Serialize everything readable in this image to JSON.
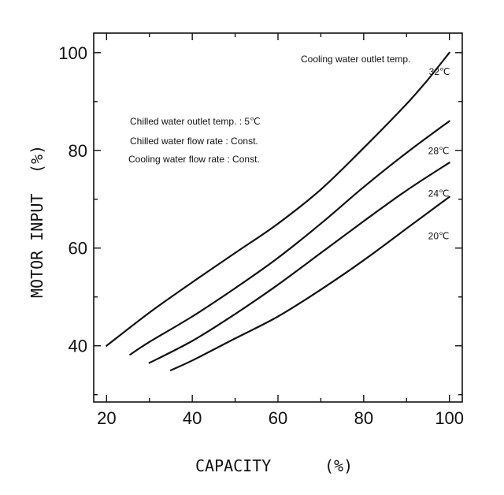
{
  "chart_data": {
    "type": "line",
    "title": "",
    "xlabel": "CAPACITY",
    "xunit": "(%)",
    "ylabel": "MOTOR INPUT",
    "yunit": "(%)",
    "xlim": [
      17,
      103
    ],
    "ylim": [
      28.5,
      104
    ],
    "xticks": [
      20,
      40,
      60,
      80,
      100
    ],
    "yticks": [
      40,
      60,
      80,
      100
    ],
    "minor_ticks": true,
    "grid": false,
    "notes": [
      "Chilled water outlet temp. : 5℃",
      "Chilled water flow rate : Const.",
      "Cooling water flow rate : Const."
    ],
    "legend_title": "Cooling water outlet temp.",
    "series": [
      {
        "name": "32℃",
        "x": [
          20,
          30,
          40,
          50,
          60,
          70,
          80,
          90,
          95,
          100
        ],
        "y": [
          40,
          46.8,
          53,
          59,
          65,
          72,
          80.5,
          89.5,
          94.5,
          100
        ]
      },
      {
        "name": "28℃",
        "x": [
          25.5,
          30,
          40,
          50,
          60,
          70,
          80,
          90,
          100
        ],
        "y": [
          38.2,
          40.8,
          46,
          51.8,
          58,
          65,
          72.5,
          79.5,
          86
        ]
      },
      {
        "name": "24℃",
        "x": [
          30,
          40,
          50,
          60,
          70,
          80,
          90,
          100
        ],
        "y": [
          36.5,
          41,
          46.5,
          52.5,
          59,
          65.5,
          71.8,
          77.5
        ]
      },
      {
        "name": "20℃",
        "x": [
          35,
          40,
          50,
          60,
          70,
          80,
          90,
          100
        ],
        "y": [
          35,
          37,
          41.5,
          46,
          51.5,
          57.5,
          64,
          70.5
        ]
      }
    ]
  }
}
